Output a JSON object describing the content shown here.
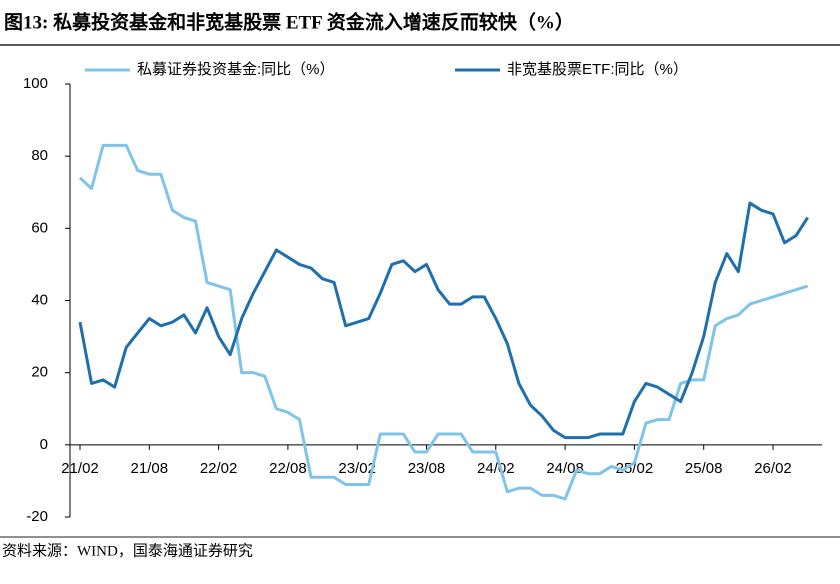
{
  "chart_data": {
    "type": "line",
    "title": "图13:  私募投资基金和非宽基股票 ETF 资金流入增速反而较快（%）",
    "source": "资料来源：WIND，国泰海通证券研究",
    "categories": [
      "21/02",
      null,
      null,
      null,
      null,
      null,
      "21/08",
      null,
      null,
      null,
      null,
      null,
      "22/02",
      null,
      null,
      null,
      null,
      null,
      "22/08",
      null,
      null,
      null,
      null,
      null,
      "23/02",
      null,
      null,
      null,
      null,
      null,
      "23/08",
      null,
      null,
      null,
      null,
      null,
      "24/02",
      null,
      null,
      null,
      null,
      null,
      "24/08",
      null,
      null,
      null,
      null,
      null,
      "25/02",
      null,
      null,
      null,
      null,
      null,
      "25/08",
      null,
      null,
      null,
      null,
      null,
      "26/02",
      null,
      null,
      null
    ],
    "series": [
      {
        "name": "私募证券投资基金:同比（%）",
        "color": "#7fc4e8",
        "values": [
          74,
          71,
          83,
          83,
          83,
          76,
          75,
          75,
          65,
          63,
          62,
          45,
          44,
          43,
          20,
          20,
          19,
          10,
          9,
          7,
          -9,
          -9,
          -9,
          -11,
          -11,
          -11,
          3,
          3,
          3,
          -2,
          -2,
          3,
          3,
          3,
          -2,
          -2,
          -2,
          -13,
          -12,
          -12,
          -14,
          -14,
          -15,
          -7,
          -8,
          -8,
          -6,
          -7,
          -5,
          6,
          7,
          7,
          17,
          18,
          18,
          33,
          35,
          36,
          39,
          40,
          41,
          42,
          43,
          44
        ]
      },
      {
        "name": "非宽基股票ETF:同比（%）",
        "color": "#1f6fad",
        "values": [
          34,
          17,
          18,
          16,
          27,
          31,
          35,
          33,
          34,
          36,
          31,
          38,
          30,
          25,
          35,
          42,
          48,
          54,
          52,
          50,
          49,
          46,
          45,
          33,
          34,
          35,
          42,
          50,
          51,
          48,
          50,
          43,
          39,
          39,
          41,
          41,
          35,
          28,
          17,
          11,
          8,
          4,
          2,
          2,
          2,
          3,
          3,
          3,
          12,
          17,
          16,
          14,
          12,
          20,
          30,
          45,
          53,
          48,
          67,
          65,
          64,
          56,
          58,
          63
        ]
      }
    ],
    "ylim": [
      -20,
      100
    ],
    "yticks": [
      -20,
      0,
      20,
      40,
      60,
      80,
      100
    ],
    "legend": "top"
  }
}
